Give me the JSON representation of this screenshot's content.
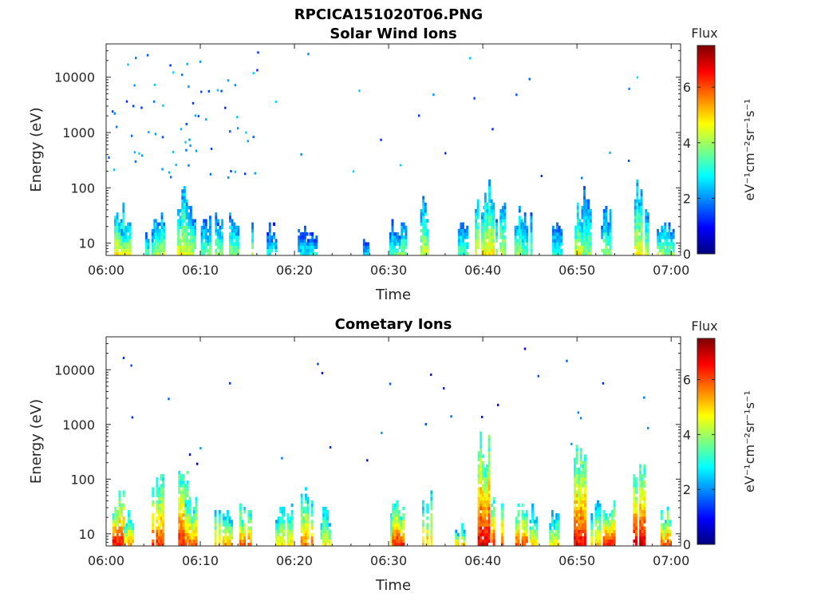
{
  "figure": {
    "title": "RPCICA151020T06.PNG"
  },
  "colorbar": {
    "title": "Flux",
    "label_html": "eV⁻¹cm⁻²sr⁻¹s⁻¹",
    "ticks": [
      "0",
      "2",
      "4",
      "6"
    ],
    "range": [
      0,
      7.5
    ],
    "colormap": "jet",
    "colors": [
      "#00007f",
      "#0000ff",
      "#007fff",
      "#00ffff",
      "#7fff7f",
      "#ffff00",
      "#ff7f00",
      "#ff0000",
      "#7f0000"
    ]
  },
  "chart_data": [
    {
      "type": "heatmap",
      "title": "Solar Wind Ions",
      "xlabel": "Time",
      "ylabel": "Energy (eV)",
      "x_ticks": [
        "06:00",
        "06:10",
        "06:20",
        "06:30",
        "06:40",
        "06:50",
        "07:00"
      ],
      "xlim_minutes": [
        0,
        61
      ],
      "y_ticks": [
        "10",
        "100",
        "1000",
        "10000"
      ],
      "ylog": true,
      "ylim": [
        6,
        40000
      ],
      "zlim": [
        0,
        7.5
      ],
      "events": [
        {
          "t": 1.3,
          "emax": 60,
          "peak": 4.8
        },
        {
          "t": 2.0,
          "emax": 35,
          "peak": 4.5
        },
        {
          "t": 4.6,
          "emax": 25,
          "peak": 3.5
        },
        {
          "t": 5.6,
          "emax": 40,
          "peak": 4.2
        },
        {
          "t": 8.0,
          "emax": 120,
          "peak": 4.5
        },
        {
          "t": 8.9,
          "emax": 60,
          "peak": 4.3
        },
        {
          "t": 10.5,
          "emax": 30,
          "peak": 3.6
        },
        {
          "t": 12.0,
          "emax": 35,
          "peak": 3.8
        },
        {
          "t": 13.5,
          "emax": 35,
          "peak": 3.8
        },
        {
          "t": 15.0,
          "emax": 40,
          "peak": 4.0
        },
        {
          "t": 17.5,
          "emax": 25,
          "peak": 3.0
        },
        {
          "t": 20.8,
          "emax": 25,
          "peak": 2.8
        },
        {
          "t": 21.8,
          "emax": 20,
          "peak": 2.8
        },
        {
          "t": 27.5,
          "emax": 12,
          "peak": 2.5
        },
        {
          "t": 30.3,
          "emax": 25,
          "peak": 3.5
        },
        {
          "t": 31.3,
          "emax": 30,
          "peak": 3.8
        },
        {
          "t": 33.8,
          "emax": 70,
          "peak": 4.3
        },
        {
          "t": 37.8,
          "emax": 25,
          "peak": 3.5
        },
        {
          "t": 39.6,
          "emax": 60,
          "peak": 4.6
        },
        {
          "t": 40.6,
          "emax": 170,
          "peak": 4.8
        },
        {
          "t": 41.8,
          "emax": 50,
          "peak": 4.2
        },
        {
          "t": 43.8,
          "emax": 45,
          "peak": 4.0
        },
        {
          "t": 44.6,
          "emax": 45,
          "peak": 3.5
        },
        {
          "t": 47.8,
          "emax": 25,
          "peak": 3.2
        },
        {
          "t": 50.2,
          "emax": 55,
          "peak": 4.6
        },
        {
          "t": 50.9,
          "emax": 100,
          "peak": 3.8
        },
        {
          "t": 53.0,
          "emax": 45,
          "peak": 3.8
        },
        {
          "t": 56.3,
          "emax": 150,
          "peak": 4.7
        },
        {
          "t": 57.0,
          "emax": 40,
          "peak": 4.2
        },
        {
          "t": 58.7,
          "emax": 30,
          "peak": 4.0
        },
        {
          "t": 59.7,
          "emax": 30,
          "peak": 3.8
        }
      ]
    },
    {
      "type": "heatmap",
      "title": "Cometary Ions",
      "xlabel": "Time",
      "ylabel": "Energy (eV)",
      "x_ticks": [
        "06:00",
        "06:10",
        "06:20",
        "06:30",
        "06:40",
        "06:50",
        "07:00"
      ],
      "xlim_minutes": [
        0,
        61
      ],
      "y_ticks": [
        "10",
        "100",
        "1000",
        "10000"
      ],
      "ylog": true,
      "ylim": [
        6,
        40000
      ],
      "zlim": [
        0,
        7.5
      ],
      "events": [
        {
          "t": 1.3,
          "emax": 60,
          "peak": 6.6
        },
        {
          "t": 2.3,
          "emax": 30,
          "peak": 5.5
        },
        {
          "t": 5.5,
          "emax": 200,
          "peak": 6.2
        },
        {
          "t": 8.3,
          "emax": 150,
          "peak": 6.4
        },
        {
          "t": 9.0,
          "emax": 45,
          "peak": 5.8
        },
        {
          "t": 11.5,
          "emax": 40,
          "peak": 5.2
        },
        {
          "t": 12.8,
          "emax": 40,
          "peak": 5.3
        },
        {
          "t": 14.8,
          "emax": 40,
          "peak": 5.8
        },
        {
          "t": 18.2,
          "emax": 40,
          "peak": 5.0
        },
        {
          "t": 19.2,
          "emax": 40,
          "peak": 5.0
        },
        {
          "t": 21.3,
          "emax": 80,
          "peak": 5.6
        },
        {
          "t": 23.2,
          "emax": 35,
          "peak": 4.8
        },
        {
          "t": 30.4,
          "emax": 40,
          "peak": 5.0
        },
        {
          "t": 31.0,
          "emax": 50,
          "peak": 6.3
        },
        {
          "t": 34.0,
          "emax": 100,
          "peak": 5.2
        },
        {
          "t": 37.5,
          "emax": 20,
          "peak": 5.0
        },
        {
          "t": 40.1,
          "emax": 800,
          "peak": 6.8
        },
        {
          "t": 41.5,
          "emax": 100,
          "peak": 6.2
        },
        {
          "t": 44.1,
          "emax": 40,
          "peak": 6.0
        },
        {
          "t": 45.4,
          "emax": 40,
          "peak": 5.0
        },
        {
          "t": 47.5,
          "emax": 30,
          "peak": 4.8
        },
        {
          "t": 50.3,
          "emax": 600,
          "peak": 6.6
        },
        {
          "t": 51.9,
          "emax": 50,
          "peak": 5.0
        },
        {
          "t": 53.4,
          "emax": 40,
          "peak": 6.3
        },
        {
          "t": 56.6,
          "emax": 200,
          "peak": 6.8
        },
        {
          "t": 59.3,
          "emax": 35,
          "peak": 6.0
        }
      ]
    }
  ]
}
